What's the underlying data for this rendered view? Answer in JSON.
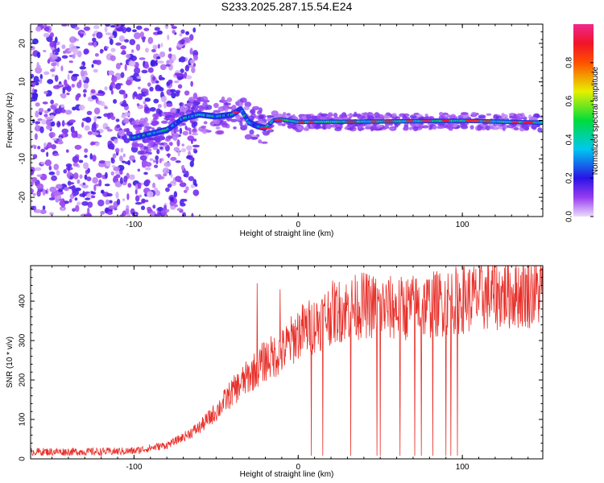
{
  "title": "S233.2025.287.15.54.E24",
  "chart_data": [
    {
      "type": "heatmap",
      "name": "spectrogram",
      "xlabel": "Height of straight line (km)",
      "ylabel": "Frequency (Hz)",
      "xlim": [
        -163,
        149
      ],
      "ylim": [
        -25,
        25
      ],
      "xticks": [
        -100,
        0,
        100
      ],
      "yticks": [
        -20,
        -10,
        0,
        10,
        20
      ],
      "description_line": [
        {
          "x": -100,
          "y": -4.5
        },
        {
          "x": -90,
          "y": -3.5
        },
        {
          "x": -80,
          "y": -2.5
        },
        {
          "x": -70,
          "y": 0.5
        },
        {
          "x": -60,
          "y": 1.5
        },
        {
          "x": -50,
          "y": 1.0
        },
        {
          "x": -40,
          "y": 1.5
        },
        {
          "x": -35,
          "y": 3.0
        },
        {
          "x": -30,
          "y": -0.5
        },
        {
          "x": -25,
          "y": -1.5
        },
        {
          "x": -20,
          "y": -2.0
        },
        {
          "x": -15,
          "y": 0.0
        },
        {
          "x": -10,
          "y": 0.2
        },
        {
          "x": 0,
          "y": -0.4
        },
        {
          "x": 50,
          "y": -0.3
        },
        {
          "x": 100,
          "y": -0.1
        },
        {
          "x": 149,
          "y": -0.6
        }
      ],
      "colorbar": {
        "label": "Normalized spectral amplitude",
        "ticks": [
          "0.0",
          "0.2",
          "0.4",
          "0.6",
          "0.8"
        ],
        "range": [
          0,
          1
        ]
      }
    },
    {
      "type": "line",
      "name": "snr",
      "xlabel": "Height of straight line (km)",
      "ylabel": "SNR (10 * v/v)",
      "xlim": [
        -163,
        149
      ],
      "ylim": [
        0,
        490
      ],
      "xticks": [
        -100,
        0,
        100
      ],
      "yticks": [
        0,
        100,
        200,
        300,
        400
      ],
      "color": "#e8302a",
      "envelope": [
        {
          "x": -163,
          "y": 18
        },
        {
          "x": -120,
          "y": 18
        },
        {
          "x": -100,
          "y": 20
        },
        {
          "x": -80,
          "y": 35
        },
        {
          "x": -70,
          "y": 55
        },
        {
          "x": -60,
          "y": 80
        },
        {
          "x": -50,
          "y": 120
        },
        {
          "x": -40,
          "y": 170
        },
        {
          "x": -30,
          "y": 210
        },
        {
          "x": -20,
          "y": 250
        },
        {
          "x": -10,
          "y": 270
        },
        {
          "x": 0,
          "y": 320
        },
        {
          "x": 10,
          "y": 340
        },
        {
          "x": 20,
          "y": 370
        },
        {
          "x": 40,
          "y": 390
        },
        {
          "x": 60,
          "y": 380
        },
        {
          "x": 80,
          "y": 390
        },
        {
          "x": 100,
          "y": 405
        },
        {
          "x": 120,
          "y": 415
        },
        {
          "x": 149,
          "y": 425
        }
      ],
      "spikes": [
        {
          "x": -25,
          "y": 445
        },
        {
          "x": -11,
          "y": 430
        },
        {
          "x": 8,
          "y": 8
        },
        {
          "x": 15,
          "y": 8
        },
        {
          "x": 32,
          "y": 8
        },
        {
          "x": 48,
          "y": 8
        },
        {
          "x": 50,
          "y": 8
        },
        {
          "x": 62,
          "y": 8
        },
        {
          "x": 71,
          "y": 8
        },
        {
          "x": 75,
          "y": 8
        },
        {
          "x": 82,
          "y": 8
        },
        {
          "x": 90,
          "y": 8
        },
        {
          "x": 93,
          "y": 8
        },
        {
          "x": 97,
          "y": 8
        }
      ]
    }
  ]
}
